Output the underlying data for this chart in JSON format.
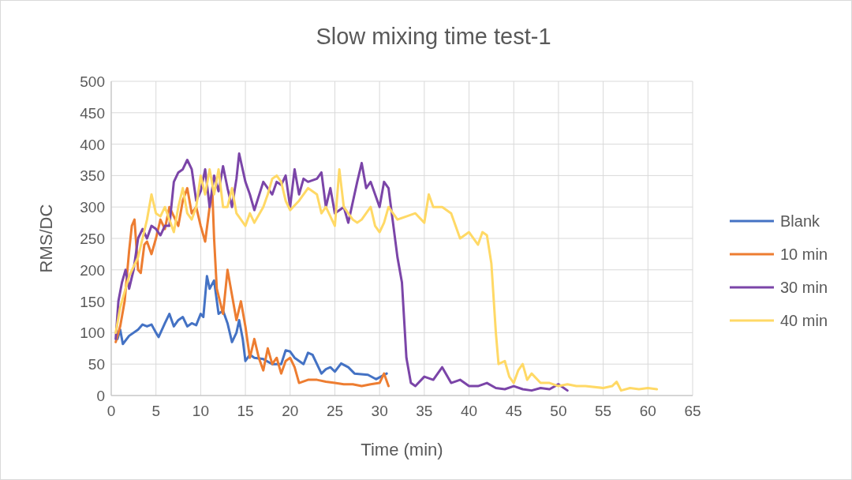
{
  "chart_data": {
    "type": "line",
    "title": "Slow mixing time test-1",
    "xlabel": "Time (min)",
    "ylabel": "RMS/DC",
    "xlim": [
      0,
      65
    ],
    "xticks": [
      0,
      5,
      10,
      15,
      20,
      25,
      30,
      35,
      40,
      45,
      50,
      55,
      60,
      65
    ],
    "ylim": [
      0,
      500
    ],
    "yticks": [
      0,
      50,
      100,
      150,
      200,
      250,
      300,
      350,
      400,
      450,
      500
    ],
    "grid": true,
    "legend": "right",
    "marker": "none",
    "line_style": "solid",
    "series": [
      {
        "name": "Blank",
        "color": "#4472c4",
        "x": [
          0.7,
          1,
          1.3,
          2,
          3,
          3.5,
          4,
          4.5,
          5,
          5.3,
          6,
          6.5,
          7,
          7.5,
          8,
          8.5,
          9,
          9.5,
          10,
          10.3,
          10.7,
          11,
          11.5,
          12,
          12.5,
          13,
          13.5,
          14,
          14.3,
          14.7,
          15,
          15.5,
          16,
          17,
          18,
          19,
          19.5,
          20,
          20.5,
          21,
          21.5,
          22,
          22.5,
          23.5,
          24,
          24.5,
          25,
          25.7,
          26.5,
          27.2,
          28.7,
          29.6,
          30.8
        ],
        "values": [
          90,
          105,
          82,
          95,
          105,
          113,
          110,
          113,
          100,
          93,
          115,
          130,
          110,
          120,
          125,
          110,
          115,
          112,
          130,
          125,
          190,
          170,
          183,
          130,
          135,
          115,
          85,
          100,
          120,
          90,
          55,
          65,
          60,
          58,
          50,
          50,
          72,
          70,
          60,
          55,
          50,
          68,
          65,
          35,
          42,
          45,
          38,
          51,
          45,
          35,
          33,
          26,
          35
        ]
      },
      {
        "name": "10 min",
        "color": "#ed7d31",
        "x": [
          0.5,
          1,
          1.5,
          2,
          2.3,
          2.6,
          3,
          3.3,
          3.7,
          4,
          4.5,
          5,
          5.5,
          6,
          6.5,
          7,
          7.5,
          8,
          8.5,
          9,
          9.5,
          10,
          10.5,
          11,
          11.3,
          11.5,
          11.8,
          12.5,
          13,
          13.5,
          14,
          14.5,
          15,
          15.5,
          16,
          16.5,
          17,
          17.5,
          18,
          18.5,
          19,
          19.5,
          20,
          20.5,
          21,
          22,
          23,
          24,
          25,
          26,
          27,
          28,
          29,
          30,
          30.5,
          31
        ],
        "values": [
          85,
          110,
          150,
          230,
          270,
          280,
          200,
          195,
          240,
          245,
          225,
          250,
          280,
          265,
          300,
          285,
          270,
          310,
          330,
          290,
          300,
          270,
          245,
          300,
          325,
          250,
          170,
          130,
          200,
          160,
          120,
          150,
          110,
          60,
          90,
          60,
          40,
          75,
          50,
          60,
          35,
          55,
          60,
          45,
          20,
          25,
          25,
          22,
          20,
          18,
          18,
          15,
          18,
          20,
          35,
          15
        ]
      },
      {
        "name": "30 min",
        "color": "#7b45a8",
        "x": [
          0.5,
          0.8,
          1.2,
          1.6,
          2,
          2.5,
          3,
          3.5,
          4,
          4.5,
          5,
          5.5,
          6,
          6.5,
          7,
          7.5,
          8,
          8.5,
          9,
          9.5,
          10,
          10.5,
          11,
          11.5,
          12,
          12.5,
          13,
          13.5,
          14,
          14.3,
          15,
          15.5,
          16,
          17,
          18,
          18.5,
          19,
          19.5,
          20,
          20.5,
          21,
          21.5,
          22,
          23,
          23.5,
          24,
          24.5,
          25,
          26,
          26.5,
          27.5,
          28,
          28.5,
          29,
          30,
          30.5,
          31,
          31.5,
          32,
          32.5,
          33,
          33.5,
          34,
          35,
          36,
          37,
          38,
          39,
          40,
          41,
          42,
          43,
          44,
          45,
          46,
          47,
          48,
          49,
          50,
          51
        ],
        "values": [
          90,
          150,
          180,
          200,
          170,
          200,
          250,
          265,
          250,
          270,
          265,
          255,
          270,
          270,
          340,
          355,
          360,
          375,
          360,
          310,
          325,
          360,
          300,
          350,
          325,
          365,
          330,
          300,
          345,
          385,
          340,
          320,
          295,
          340,
          320,
          340,
          335,
          350,
          300,
          360,
          320,
          345,
          340,
          345,
          355,
          300,
          330,
          290,
          300,
          275,
          340,
          370,
          330,
          340,
          300,
          340,
          330,
          275,
          220,
          180,
          60,
          20,
          15,
          30,
          25,
          45,
          20,
          25,
          15,
          15,
          20,
          12,
          10,
          15,
          10,
          8,
          12,
          10,
          18,
          8
        ]
      },
      {
        "name": "40 min",
        "color": "#ffd966",
        "x": [
          0.5,
          1,
          2,
          3,
          3.5,
          4,
          4.5,
          5,
          5.5,
          6,
          6.5,
          7,
          7.5,
          8,
          8.5,
          9,
          9.5,
          10,
          10.5,
          11,
          11.5,
          12,
          12.5,
          13,
          13.5,
          14,
          15,
          15.5,
          16,
          17,
          17.5,
          18,
          18.5,
          19,
          19.5,
          20,
          21,
          22,
          23,
          23.5,
          24,
          25,
          25.5,
          26,
          27,
          27.5,
          28,
          29,
          29.5,
          30,
          30.5,
          31,
          31.5,
          32,
          33,
          34,
          35,
          35.5,
          36,
          37,
          38,
          39,
          40,
          41,
          41.5,
          42,
          42.5,
          43,
          43.3,
          44,
          44.5,
          45,
          45.5,
          46,
          46.5,
          47,
          48,
          49,
          50,
          51,
          52,
          53,
          55,
          56,
          56.5,
          57,
          58,
          59,
          60,
          61
        ],
        "values": [
          100,
          140,
          190,
          220,
          250,
          280,
          320,
          290,
          285,
          300,
          280,
          260,
          300,
          330,
          290,
          280,
          300,
          350,
          320,
          360,
          320,
          360,
          300,
          300,
          330,
          290,
          270,
          290,
          275,
          300,
          320,
          345,
          350,
          340,
          310,
          295,
          310,
          330,
          320,
          290,
          300,
          270,
          360,
          300,
          280,
          275,
          280,
          300,
          270,
          260,
          275,
          300,
          290,
          280,
          285,
          290,
          275,
          320,
          300,
          300,
          290,
          250,
          260,
          240,
          260,
          255,
          210,
          100,
          50,
          55,
          30,
          20,
          40,
          50,
          25,
          35,
          20,
          20,
          15,
          18,
          15,
          15,
          12,
          15,
          22,
          8,
          12,
          10,
          12,
          10
        ]
      }
    ]
  }
}
